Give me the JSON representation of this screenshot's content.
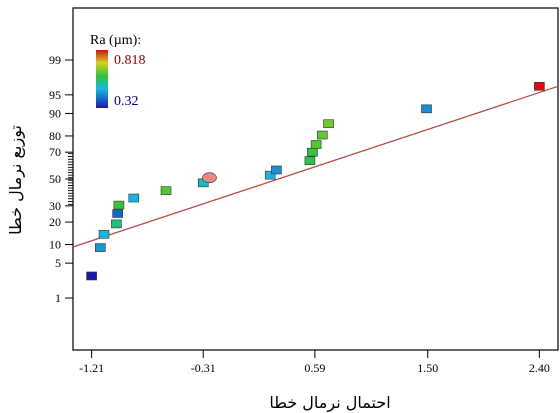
{
  "chart_data": {
    "type": "scatter",
    "title": "",
    "xlabel": "احتمال نرمال خطا",
    "ylabel": "توزیع نرمال خطا",
    "x_ticks": [
      -1.21,
      -0.31,
      0.59,
      1.5,
      2.4
    ],
    "x_tick_labels": [
      "-1.21",
      "-0.31",
      "0.59",
      "1.50",
      "2.40"
    ],
    "y_ticks": [
      1,
      5,
      10,
      20,
      30,
      50,
      70,
      80,
      90,
      95,
      99
    ],
    "y_tick_labels": [
      "1",
      "5",
      "10",
      "20",
      "30",
      "50",
      "70",
      "80",
      "90",
      "95",
      "99"
    ],
    "xlim": [
      -1.36,
      2.55
    ],
    "grid": false,
    "legend": {
      "title": "Ra (µm):",
      "max_label": "0.818",
      "min_label": "0.32",
      "max_value": 0.818,
      "min_value": 0.32,
      "placement": "top-left",
      "max_color": "#8b0000",
      "min_color": "#00008b"
    },
    "fit_line": {
      "x": [
        -1.36,
        2.55
      ],
      "y_percent": [
        9.2,
        96.5
      ],
      "color": "#b84a4a"
    },
    "points": [
      {
        "x": -1.21,
        "y": 2.9,
        "ra": 0.32
      },
      {
        "x": -1.14,
        "y": 9.0,
        "ra": 0.45
      },
      {
        "x": -1.11,
        "y": 14.0,
        "ra": 0.48
      },
      {
        "x": -1.01,
        "y": 19.0,
        "ra": 0.55
      },
      {
        "x": -1.0,
        "y": 25.0,
        "ra": 0.4
      },
      {
        "x": -0.99,
        "y": 30.5,
        "ra": 0.6
      },
      {
        "x": -0.87,
        "y": 35.5,
        "ra": 0.48
      },
      {
        "x": -0.61,
        "y": 41.0,
        "ra": 0.62
      },
      {
        "x": -0.31,
        "y": 47.0,
        "ra": 0.5
      },
      {
        "x": -0.26,
        "y": 51.0,
        "ra": 0.72,
        "shape": "ellipse"
      },
      {
        "x": 0.23,
        "y": 53.0,
        "ra": 0.48
      },
      {
        "x": 0.28,
        "y": 57.0,
        "ra": 0.44
      },
      {
        "x": 0.55,
        "y": 64.0,
        "ra": 0.58
      },
      {
        "x": 0.57,
        "y": 70.0,
        "ra": 0.6
      },
      {
        "x": 0.6,
        "y": 75.0,
        "ra": 0.62
      },
      {
        "x": 0.65,
        "y": 80.5,
        "ra": 0.63
      },
      {
        "x": 0.7,
        "y": 86.0,
        "ra": 0.64
      },
      {
        "x": 1.49,
        "y": 91.5,
        "ra": 0.44
      },
      {
        "x": 2.4,
        "y": 96.5,
        "ra": 0.818
      }
    ]
  }
}
